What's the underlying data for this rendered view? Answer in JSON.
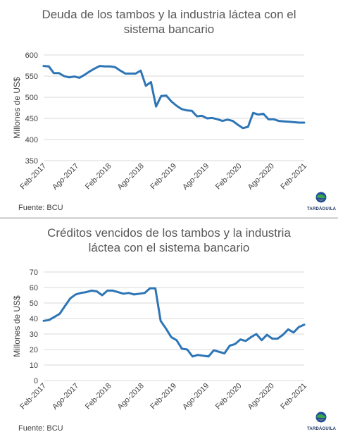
{
  "chart_data": [
    {
      "type": "line",
      "title_lines": [
        "Deuda de los tambos y la industria láctea con el",
        "sistema bancario"
      ],
      "ylabel": "Millones de US$",
      "xlabel": "",
      "ylim": [
        350,
        600
      ],
      "yticks": [
        350,
        400,
        450,
        500,
        550,
        600
      ],
      "xticks": [
        "Feb-2017",
        "Ago-2017",
        "Feb-2018",
        "Ago-2018",
        "Feb-2019",
        "Ago-2019",
        "Feb-2020",
        "Ago-2020",
        "Feb-2021"
      ],
      "grid": true,
      "source": "Fuente: BCU",
      "series": [
        {
          "color": "#2e75b6",
          "values": [
            574,
            573,
            557,
            557,
            550,
            547,
            549,
            546,
            553,
            561,
            568,
            574,
            573,
            573,
            571,
            563,
            556,
            556,
            556,
            563,
            527,
            536,
            478,
            503,
            504,
            490,
            480,
            472,
            469,
            468,
            455,
            456,
            450,
            451,
            448,
            444,
            447,
            444,
            435,
            427,
            430,
            463,
            459,
            461,
            448,
            448,
            444,
            443,
            442,
            441,
            440,
            440
          ]
        }
      ]
    },
    {
      "type": "line",
      "title_lines": [
        "Créditos vencidos de los tambos y la industria",
        "láctea con el sistema bancario"
      ],
      "ylabel": "Millones de US$",
      "xlabel": "",
      "ylim": [
        0,
        70
      ],
      "yticks": [
        0,
        10,
        20,
        30,
        40,
        50,
        60,
        70
      ],
      "xticks": [
        "Feb-2017",
        "Ago-2017",
        "Feb-2018",
        "Ago-2018",
        "Feb-2019",
        "Ago-2019",
        "Feb-2020",
        "Ago-2020",
        "Feb-2021"
      ],
      "grid": true,
      "source": "Fuente: BCU",
      "series": [
        {
          "color": "#2e75b6",
          "values": [
            38.5,
            39,
            41,
            43,
            48,
            53,
            55.5,
            56.5,
            57,
            58,
            57.5,
            55,
            58,
            58,
            57,
            56,
            56.5,
            55.5,
            56,
            56.5,
            59.5,
            59.5,
            38.5,
            33.5,
            28,
            26,
            20.5,
            20,
            15.5,
            16.5,
            16,
            15.5,
            19.5,
            18.5,
            17.5,
            22.5,
            23.5,
            26.5,
            25.5,
            28,
            30,
            26,
            29.5,
            27,
            27,
            29.5,
            33,
            31,
            34.5,
            36
          ]
        }
      ]
    }
  ],
  "logo": {
    "name": "Tardáguila",
    "text": "TARDÁGUILA",
    "icon": "globe-logo-icon"
  }
}
